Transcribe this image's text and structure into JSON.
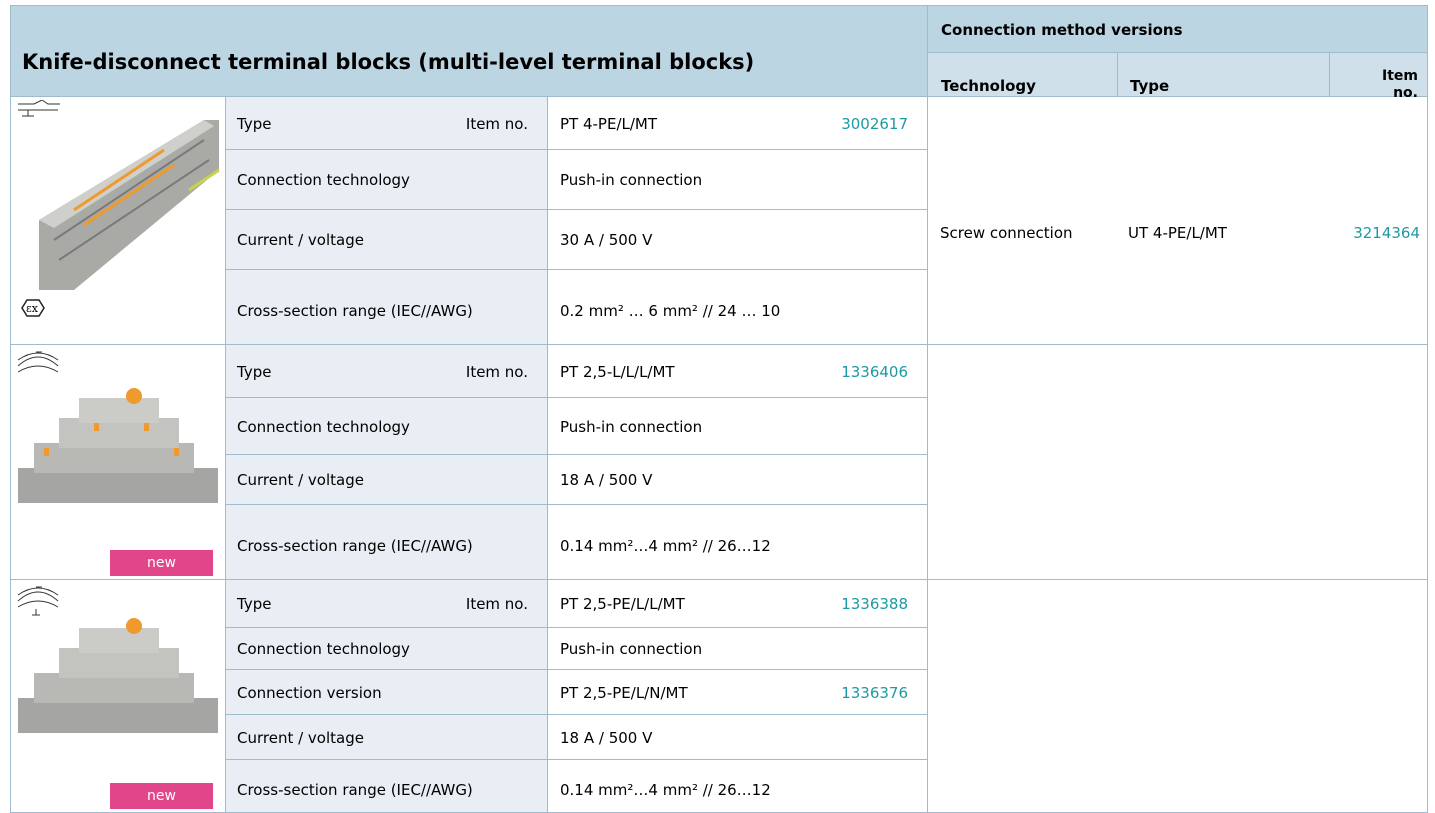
{
  "header": {
    "title": "Knife-disconnect terminal blocks (multi-level terminal blocks)",
    "group": "Connection method versions",
    "columns": [
      "Technology",
      "Type",
      "Item no."
    ]
  },
  "products": [
    {
      "rows": [
        {
          "label": "Type",
          "label_right": "Item no.",
          "value": "PT 4-PE/L/MT",
          "item": "3002617"
        },
        {
          "label": "Connection technology",
          "value": "Push-in connection"
        },
        {
          "label": "Current / voltage",
          "value": "30 A / 500 V"
        },
        {
          "label": "Cross-section range (IEC//AWG)",
          "value": "0.2 mm² … 6 mm² // 24 … 10"
        }
      ],
      "versions": {
        "technology": "Screw connection",
        "type": "UT 4-PE/L/MT",
        "item": "3214364"
      }
    },
    {
      "badge": "new",
      "rows": [
        {
          "label": "Type",
          "label_right": "Item no.",
          "value": "PT 2,5-L/L/L/MT",
          "item": "1336406"
        },
        {
          "label": "Connection technology",
          "value": "Push-in connection"
        },
        {
          "label": "Current / voltage",
          "value": "18 A / 500 V"
        },
        {
          "label": "Cross-section range (IEC//AWG)",
          "value": "0.14 mm²…4 mm² // 26…12"
        }
      ]
    },
    {
      "badge": "new",
      "rows": [
        {
          "label": "Type",
          "label_right": "Item no.",
          "value": "PT 2,5-PE/L/L/MT",
          "item": "1336388"
        },
        {
          "label": "Connection technology",
          "value": "Push-in connection"
        },
        {
          "label": "Connection version",
          "value": "PT 2,5-PE/L/N/MT",
          "item": "1336376"
        },
        {
          "label": "Current / voltage",
          "value": "18 A / 500 V"
        },
        {
          "label": "Cross-section range (IEC//AWG)",
          "value": "0.14 mm²…4 mm² // 26…12"
        }
      ]
    }
  ]
}
